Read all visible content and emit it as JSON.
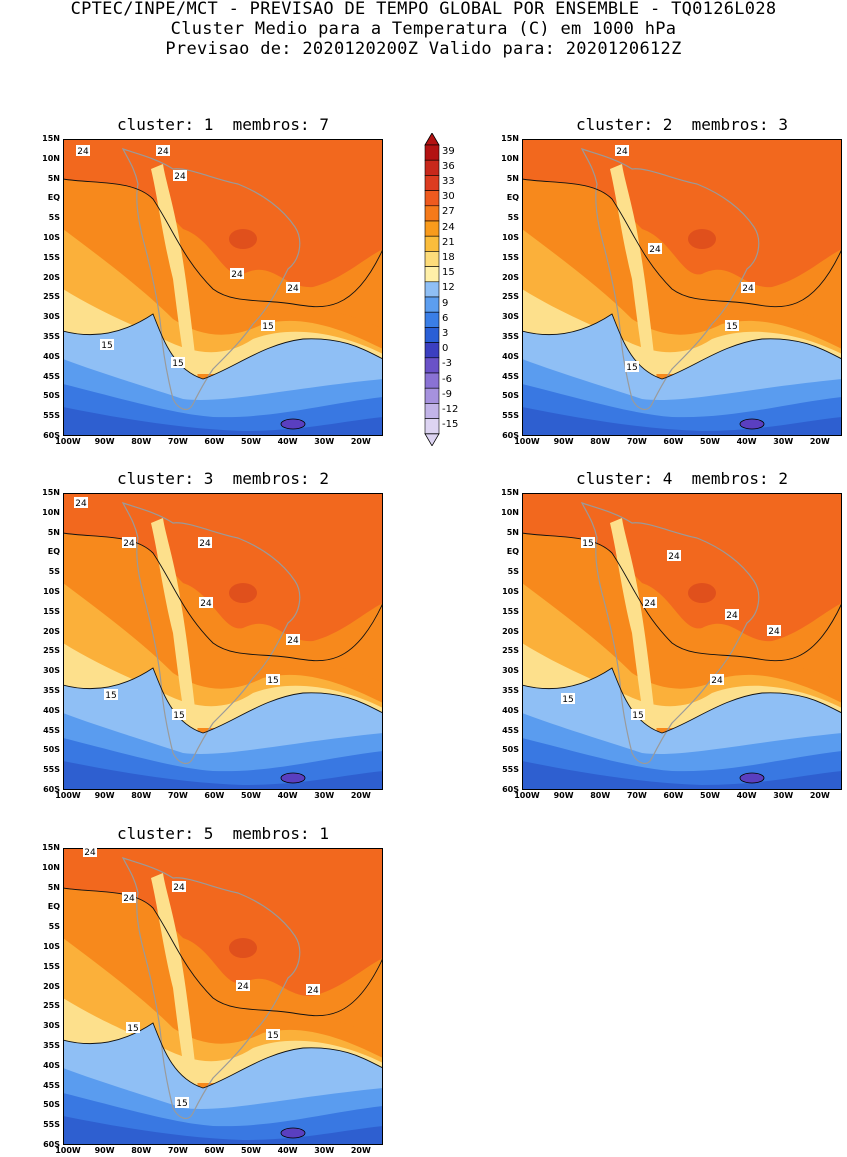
{
  "header": {
    "line1": "CPTEC/INPE/MCT - PREVISAO DE TEMPO GLOBAL POR ENSEMBLE - TQ0126L028",
    "line2": "Cluster Medio para a Temperatura (C) em 1000 hPa",
    "line3": "Previsao de: 2020120200Z   Valido para: 2020120612Z"
  },
  "lat_ticks": [
    "15N",
    "10N",
    "5N",
    "EQ",
    "5S",
    "10S",
    "15S",
    "20S",
    "25S",
    "30S",
    "35S",
    "40S",
    "45S",
    "50S",
    "55S",
    "60S"
  ],
  "lon_ticks": [
    "100W",
    "90W",
    "80W",
    "70W",
    "60W",
    "50W",
    "40W",
    "30W",
    "20W"
  ],
  "colorbar": {
    "labels": [
      "39",
      "36",
      "33",
      "30",
      "27",
      "24",
      "21",
      "18",
      "15",
      "12",
      "9",
      "6",
      "3",
      "0",
      "-3",
      "-6",
      "-9",
      "-12",
      "-15"
    ],
    "colors": [
      "#b31212",
      "#c8281c",
      "#dc3c20",
      "#ee5a1e",
      "#f57a1a",
      "#f99b1c",
      "#fbbd3c",
      "#fddc7a",
      "#fff0a8",
      "#8fbff5",
      "#5c9ef0",
      "#3a7ee6",
      "#2a5fd6",
      "#3b3fc0",
      "#6a52c8",
      "#8a72d4",
      "#a692de",
      "#c2b4e8",
      "#ddd4f2"
    ]
  },
  "panels": [
    {
      "cluster_label": "cluster: 1",
      "members_label": "membros: 7",
      "contour_labels": [
        "24",
        "24",
        "24",
        "24",
        "24",
        "15",
        "15",
        "15"
      ]
    },
    {
      "cluster_label": "cluster: 2",
      "members_label": "membros: 3",
      "contour_labels": [
        "24",
        "24",
        "24",
        "15",
        "15"
      ]
    },
    {
      "cluster_label": "cluster: 3",
      "members_label": "membros: 2",
      "contour_labels": [
        "24",
        "24",
        "24",
        "24",
        "24",
        "15",
        "15",
        "15"
      ]
    },
    {
      "cluster_label": "cluster: 4",
      "members_label": "membros: 2",
      "contour_labels": [
        "24",
        "24",
        "24",
        "24",
        "24",
        "24",
        "15",
        "15",
        "15"
      ]
    },
    {
      "cluster_label": "cluster: 5",
      "members_label": "membros: 1",
      "contour_labels": [
        "24",
        "24",
        "24",
        "24",
        "24",
        "15",
        "15",
        "15"
      ]
    }
  ]
}
